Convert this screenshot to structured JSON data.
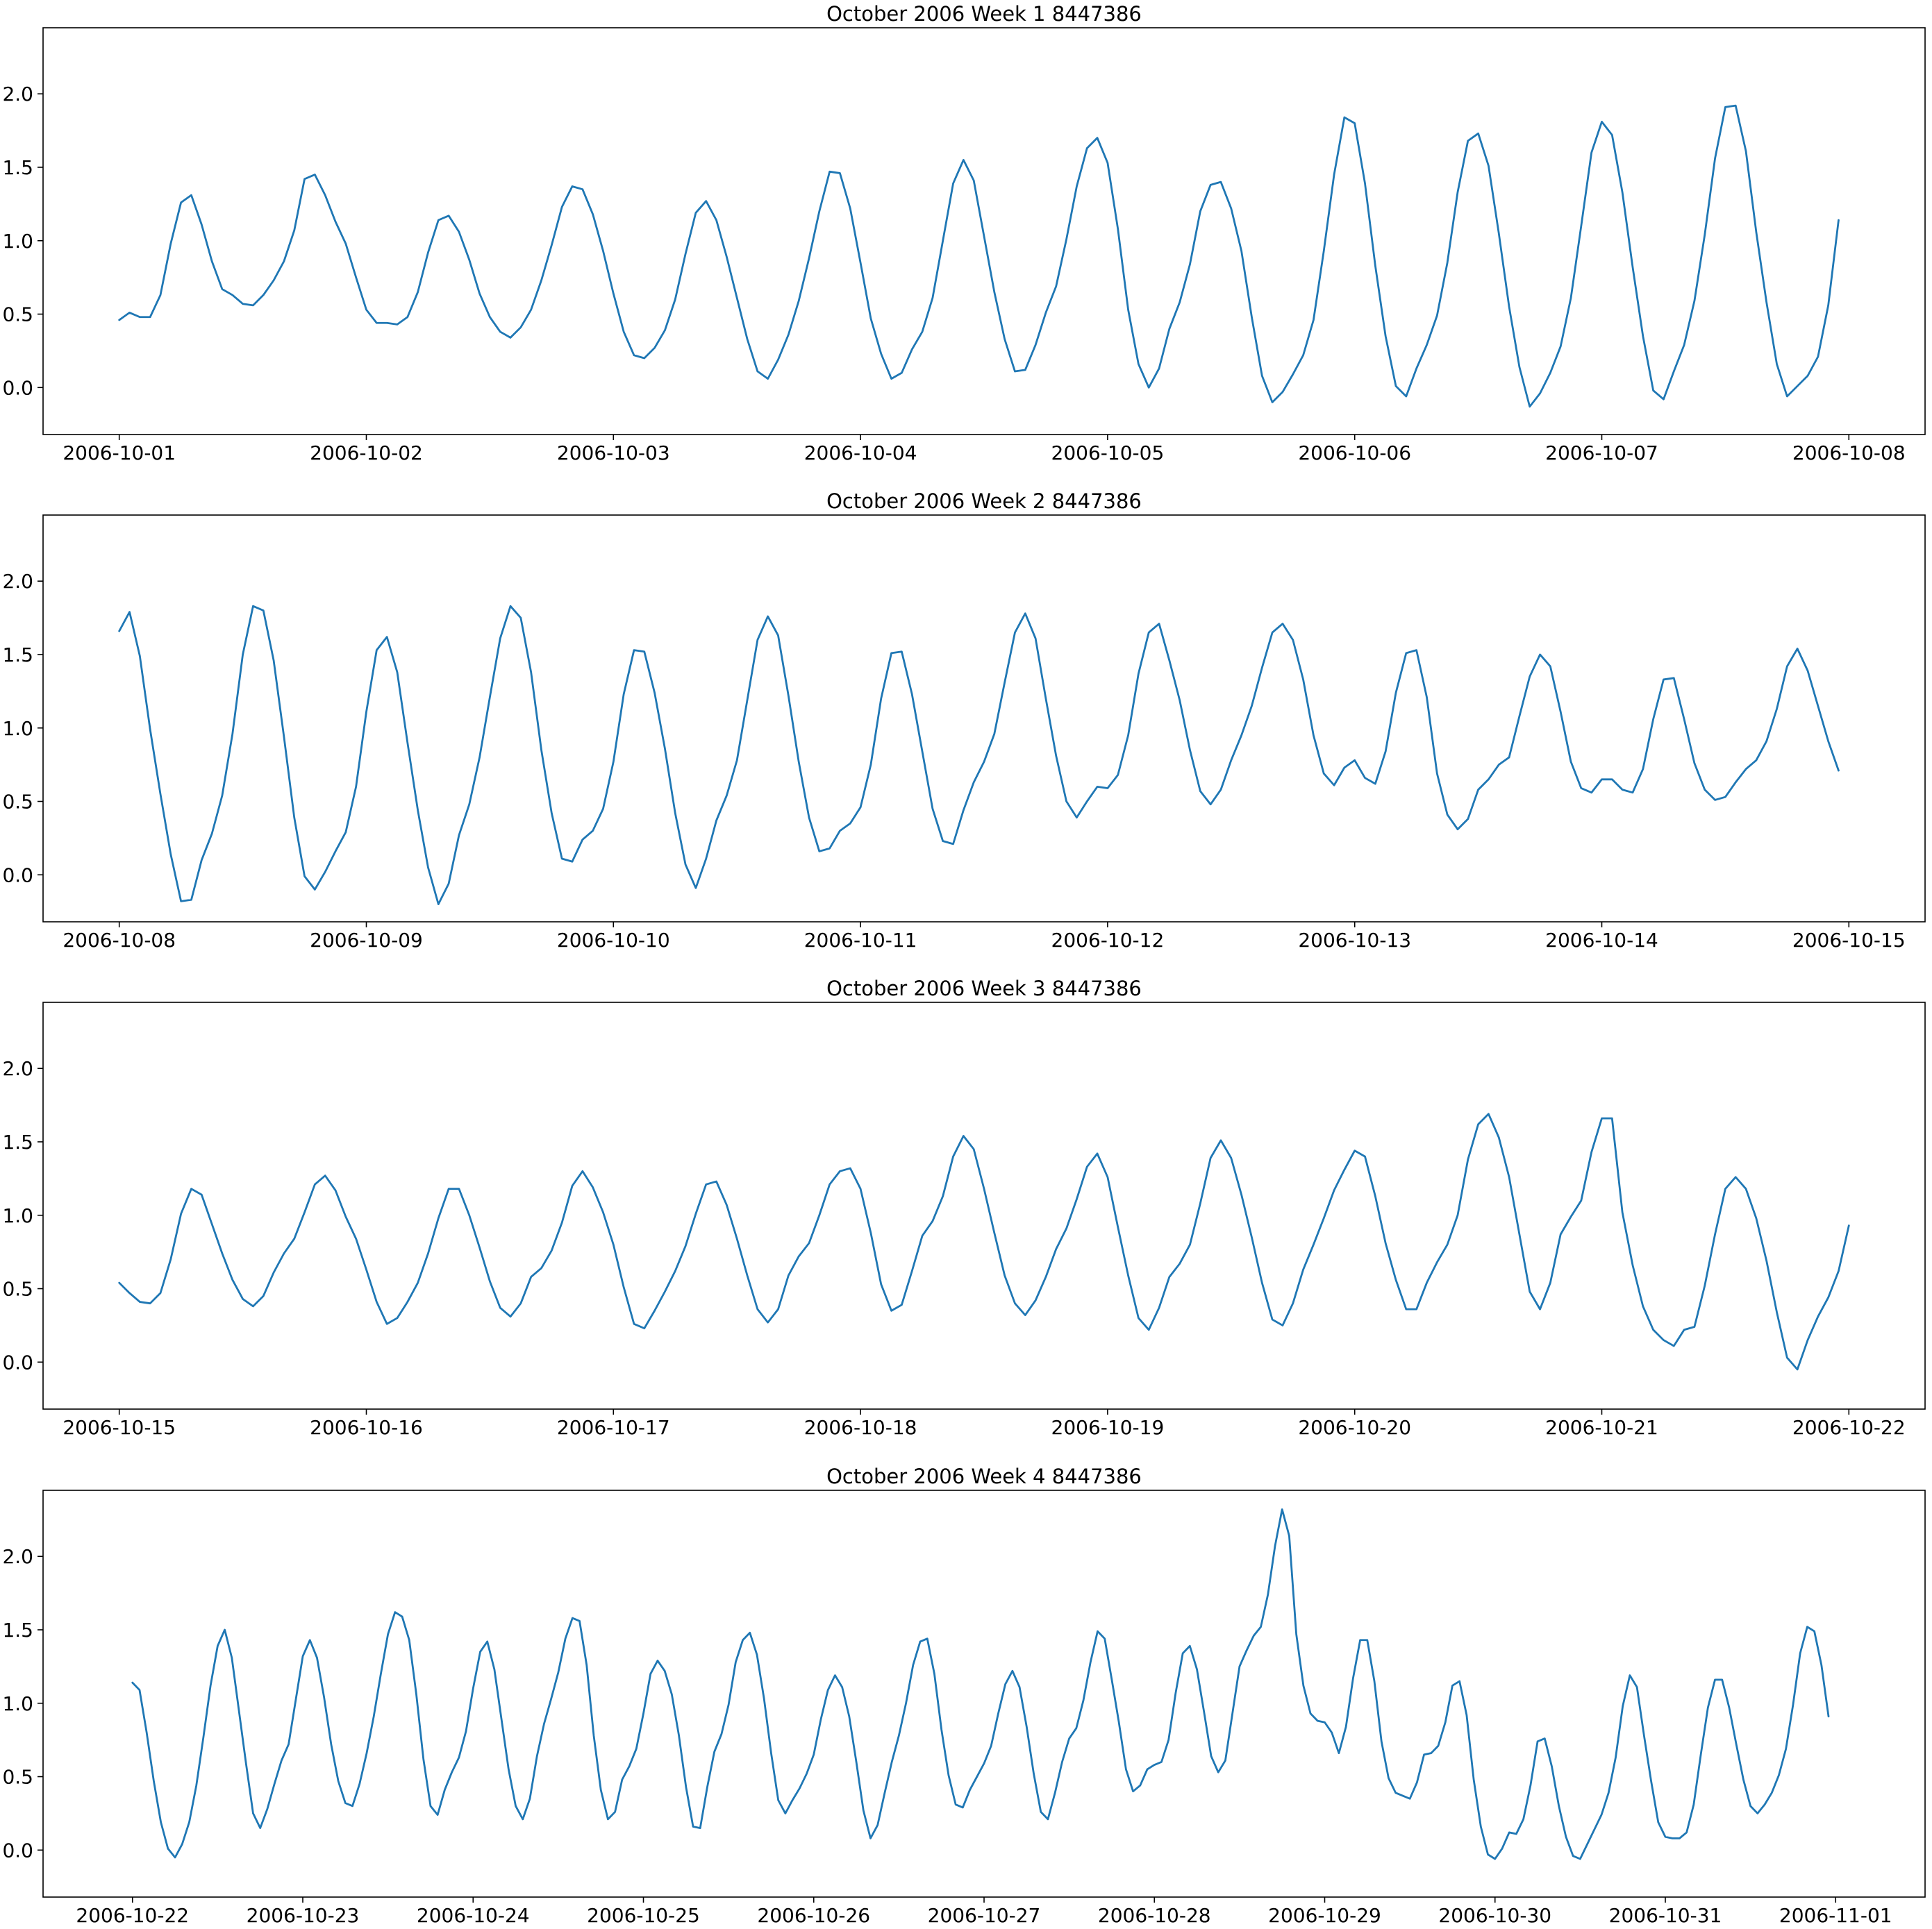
{
  "figure": {
    "line_color": "#1f77b4"
  },
  "chart_data": [
    {
      "type": "line",
      "title": "October 2006 Week 1 8447386",
      "xlabel": "",
      "ylabel": "",
      "x_start": "2006-10-01 00:00",
      "x_step_hours": 1,
      "x_ticks": [
        "2006-10-01",
        "2006-10-02",
        "2006-10-03",
        "2006-10-04",
        "2006-10-05",
        "2006-10-06",
        "2006-10-07",
        "2006-10-08"
      ],
      "xlim": [
        "2006-09-30 16:36",
        "2006-10-08 07:24"
      ],
      "ylim": [
        -0.32,
        2.45
      ],
      "y_ticks": [
        "0.0",
        "0.5",
        "1.0",
        "1.5",
        "2.0"
      ],
      "grid": false,
      "values": [
        0.46,
        0.51,
        0.48,
        0.48,
        0.63,
        0.98,
        1.26,
        1.31,
        1.11,
        0.86,
        0.67,
        0.63,
        0.57,
        0.56,
        0.63,
        0.73,
        0.86,
        1.07,
        1.42,
        1.45,
        1.31,
        1.13,
        0.98,
        0.75,
        0.53,
        0.44,
        0.44,
        0.43,
        0.48,
        0.65,
        0.92,
        1.14,
        1.17,
        1.06,
        0.87,
        0.64,
        0.48,
        0.38,
        0.34,
        0.41,
        0.53,
        0.73,
        0.97,
        1.23,
        1.37,
        1.35,
        1.18,
        0.93,
        0.64,
        0.38,
        0.22,
        0.2,
        0.27,
        0.39,
        0.6,
        0.91,
        1.19,
        1.27,
        1.14,
        0.89,
        0.61,
        0.33,
        0.11,
        0.06,
        0.19,
        0.36,
        0.59,
        0.88,
        1.2,
        1.47,
        1.46,
        1.22,
        0.85,
        0.47,
        0.23,
        0.06,
        0.1,
        0.26,
        0.38,
        0.61,
        1.0,
        1.39,
        1.55,
        1.41,
        1.03,
        0.65,
        0.33,
        0.11,
        0.12,
        0.29,
        0.51,
        0.69,
        1.01,
        1.37,
        1.63,
        1.7,
        1.53,
        1.08,
        0.53,
        0.16,
        0.0,
        0.13,
        0.4,
        0.58,
        0.84,
        1.2,
        1.38,
        1.4,
        1.22,
        0.93,
        0.48,
        0.08,
        -0.1,
        -0.03,
        0.09,
        0.22,
        0.46,
        0.93,
        1.45,
        1.84,
        1.8,
        1.39,
        0.83,
        0.35,
        0.01,
        -0.06,
        0.13,
        0.29,
        0.49,
        0.85,
        1.33,
        1.68,
        1.73,
        1.51,
        1.05,
        0.55,
        0.14,
        -0.13,
        -0.04,
        0.1,
        0.28,
        0.61,
        1.1,
        1.6,
        1.81,
        1.72,
        1.33,
        0.82,
        0.35,
        -0.02,
        -0.08,
        0.11,
        0.29,
        0.59,
        1.04,
        1.56,
        1.91,
        1.92,
        1.61,
        1.06,
        0.58,
        0.16,
        -0.06,
        0.01,
        0.08,
        0.21,
        0.56,
        1.14
      ]
    },
    {
      "type": "line",
      "title": "October 2006 Week 2 8447386",
      "xlabel": "",
      "ylabel": "",
      "x_start": "2006-10-08 00:00",
      "x_step_hours": 1,
      "x_ticks": [
        "2006-10-08",
        "2006-10-09",
        "2006-10-10",
        "2006-10-11",
        "2006-10-12",
        "2006-10-13",
        "2006-10-14",
        "2006-10-15"
      ],
      "xlim": [
        "2006-10-07 16:36",
        "2006-10-15 07:24"
      ],
      "ylim": [
        -0.32,
        2.45
      ],
      "y_ticks": [
        "0.0",
        "0.5",
        "1.0",
        "1.5",
        "2.0"
      ],
      "grid": false,
      "values": [
        1.66,
        1.79,
        1.49,
        0.99,
        0.55,
        0.14,
        -0.18,
        -0.17,
        0.1,
        0.28,
        0.54,
        0.96,
        1.5,
        1.83,
        1.8,
        1.46,
        0.94,
        0.39,
        -0.01,
        -0.1,
        0.02,
        0.16,
        0.29,
        0.6,
        1.11,
        1.53,
        1.62,
        1.38,
        0.9,
        0.44,
        0.05,
        -0.2,
        -0.06,
        0.27,
        0.48,
        0.8,
        1.21,
        1.61,
        1.83,
        1.75,
        1.38,
        0.85,
        0.42,
        0.11,
        0.09,
        0.24,
        0.3,
        0.45,
        0.77,
        1.23,
        1.53,
        1.52,
        1.24,
        0.86,
        0.42,
        0.07,
        -0.09,
        0.11,
        0.37,
        0.54,
        0.78,
        1.19,
        1.6,
        1.76,
        1.63,
        1.22,
        0.77,
        0.39,
        0.16,
        0.18,
        0.3,
        0.35,
        0.46,
        0.75,
        1.2,
        1.51,
        1.52,
        1.23,
        0.84,
        0.45,
        0.23,
        0.21,
        0.44,
        0.63,
        0.77,
        0.96,
        1.31,
        1.65,
        1.78,
        1.61,
        1.2,
        0.81,
        0.5,
        0.39,
        0.5,
        0.6,
        0.59,
        0.68,
        0.95,
        1.37,
        1.65,
        1.71,
        1.46,
        1.19,
        0.85,
        0.57,
        0.48,
        0.58,
        0.78,
        0.95,
        1.15,
        1.41,
        1.65,
        1.71,
        1.6,
        1.33,
        0.95,
        0.69,
        0.61,
        0.73,
        0.78,
        0.66,
        0.62,
        0.84,
        1.24,
        1.51,
        1.53,
        1.21,
        0.69,
        0.41,
        0.31,
        0.38,
        0.58,
        0.65,
        0.75,
        0.8,
        1.08,
        1.35,
        1.5,
        1.42,
        1.11,
        0.77,
        0.59,
        0.56,
        0.65,
        0.65,
        0.58,
        0.56,
        0.72,
        1.06,
        1.33,
        1.34,
        1.06,
        0.76,
        0.58,
        0.51,
        0.53,
        0.63,
        0.72,
        0.78,
        0.91,
        1.13,
        1.42,
        1.54,
        1.39,
        1.15,
        0.91,
        0.71
      ]
    },
    {
      "type": "line",
      "title": "October 2006 Week 3 8447386",
      "xlabel": "",
      "ylabel": "",
      "x_start": "2006-10-15 00:00",
      "x_step_hours": 1,
      "x_ticks": [
        "2006-10-15",
        "2006-10-16",
        "2006-10-17",
        "2006-10-18",
        "2006-10-19",
        "2006-10-20",
        "2006-10-21",
        "2006-10-22"
      ],
      "xlim": [
        "2006-10-14 16:36",
        "2006-10-22 07:24"
      ],
      "ylim": [
        -0.32,
        2.45
      ],
      "y_ticks": [
        "0.0",
        "0.5",
        "1.0",
        "1.5",
        "2.0"
      ],
      "grid": false,
      "values": [
        0.54,
        0.47,
        0.41,
        0.4,
        0.47,
        0.7,
        1.01,
        1.18,
        1.14,
        0.94,
        0.74,
        0.56,
        0.43,
        0.38,
        0.45,
        0.61,
        0.74,
        0.84,
        1.02,
        1.21,
        1.27,
        1.17,
        0.99,
        0.84,
        0.63,
        0.41,
        0.26,
        0.3,
        0.41,
        0.54,
        0.74,
        0.98,
        1.18,
        1.18,
        1.0,
        0.78,
        0.55,
        0.37,
        0.31,
        0.4,
        0.58,
        0.64,
        0.76,
        0.95,
        1.2,
        1.3,
        1.19,
        1.02,
        0.8,
        0.51,
        0.26,
        0.23,
        0.35,
        0.48,
        0.62,
        0.79,
        1.01,
        1.21,
        1.23,
        1.07,
        0.84,
        0.59,
        0.36,
        0.27,
        0.36,
        0.59,
        0.72,
        0.81,
        1.0,
        1.21,
        1.3,
        1.32,
        1.18,
        0.88,
        0.53,
        0.35,
        0.39,
        0.62,
        0.86,
        0.96,
        1.13,
        1.4,
        1.54,
        1.45,
        1.18,
        0.88,
        0.59,
        0.4,
        0.32,
        0.42,
        0.58,
        0.77,
        0.91,
        1.11,
        1.33,
        1.42,
        1.26,
        0.92,
        0.59,
        0.3,
        0.22,
        0.37,
        0.58,
        0.67,
        0.8,
        1.08,
        1.39,
        1.51,
        1.39,
        1.14,
        0.85,
        0.54,
        0.29,
        0.25,
        0.4,
        0.63,
        0.8,
        0.98,
        1.17,
        1.31,
        1.44,
        1.4,
        1.13,
        0.81,
        0.56,
        0.36,
        0.36,
        0.54,
        0.68,
        0.8,
        1.0,
        1.38,
        1.62,
        1.69,
        1.53,
        1.26,
        0.87,
        0.48,
        0.36,
        0.54,
        0.87,
        0.99,
        1.1,
        1.43,
        1.66,
        1.66,
        1.02,
        0.66,
        0.38,
        0.22,
        0.15,
        0.11,
        0.22,
        0.24,
        0.52,
        0.87,
        1.18,
        1.26,
        1.18,
        0.98,
        0.69,
        0.34,
        0.03,
        -0.05,
        0.15,
        0.31,
        0.44,
        0.62,
        0.93
      ]
    },
    {
      "type": "line",
      "title": "October 2006 Week 4 8447386",
      "xlabel": "",
      "ylabel": "",
      "x_start": "2006-10-22 00:00",
      "x_step_hours": 1,
      "x_ticks": [
        "2006-10-22",
        "2006-10-23",
        "2006-10-24",
        "2006-10-25",
        "2006-10-26",
        "2006-10-27",
        "2006-10-28",
        "2006-10-29",
        "2006-10-30",
        "2006-10-31",
        "2006-11-01"
      ],
      "xlim": [
        "2006-10-21 11:24",
        "2006-11-01 12:36"
      ],
      "ylim": [
        -0.32,
        2.45
      ],
      "y_ticks": [
        "0.0",
        "0.5",
        "1.0",
        "1.5",
        "2.0"
      ],
      "grid": false,
      "values": [
        1.14,
        1.09,
        0.8,
        0.47,
        0.19,
        0.01,
        -0.05,
        0.04,
        0.19,
        0.44,
        0.77,
        1.12,
        1.39,
        1.5,
        1.31,
        0.95,
        0.59,
        0.25,
        0.15,
        0.28,
        0.45,
        0.61,
        0.72,
        1.02,
        1.32,
        1.43,
        1.31,
        1.04,
        0.72,
        0.47,
        0.32,
        0.3,
        0.45,
        0.66,
        0.91,
        1.2,
        1.47,
        1.62,
        1.59,
        1.43,
        1.06,
        0.62,
        0.3,
        0.24,
        0.41,
        0.53,
        0.63,
        0.81,
        1.1,
        1.35,
        1.42,
        1.23,
        0.89,
        0.55,
        0.3,
        0.21,
        0.35,
        0.64,
        0.86,
        1.03,
        1.21,
        1.44,
        1.58,
        1.56,
        1.26,
        0.78,
        0.41,
        0.21,
        0.26,
        0.48,
        0.57,
        0.69,
        0.93,
        1.2,
        1.29,
        1.22,
        1.06,
        0.78,
        0.43,
        0.16,
        0.15,
        0.43,
        0.67,
        0.79,
        0.99,
        1.28,
        1.43,
        1.48,
        1.33,
        1.03,
        0.66,
        0.34,
        0.25,
        0.34,
        0.42,
        0.52,
        0.65,
        0.89,
        1.09,
        1.19,
        1.11,
        0.91,
        0.6,
        0.27,
        0.08,
        0.17,
        0.39,
        0.6,
        0.78,
        1.0,
        1.26,
        1.42,
        1.44,
        1.2,
        0.82,
        0.51,
        0.31,
        0.29,
        0.41,
        0.5,
        0.59,
        0.71,
        0.93,
        1.13,
        1.22,
        1.11,
        0.84,
        0.52,
        0.26,
        0.21,
        0.39,
        0.6,
        0.76,
        0.83,
        1.02,
        1.28,
        1.49,
        1.44,
        1.16,
        0.87,
        0.55,
        0.4,
        0.44,
        0.55,
        0.58,
        0.6,
        0.75,
        1.07,
        1.34,
        1.39,
        1.23,
        0.94,
        0.64,
        0.53,
        0.61,
        0.93,
        1.25,
        1.36,
        1.46,
        1.52,
        1.74,
        2.07,
        2.32,
        2.14,
        1.47,
        1.12,
        0.93,
        0.88,
        0.87,
        0.8,
        0.66,
        0.84,
        1.17,
        1.43,
        1.43,
        1.15,
        0.74,
        0.49,
        0.39,
        0.37,
        0.35,
        0.46,
        0.65,
        0.66,
        0.71,
        0.87,
        1.12,
        1.15,
        0.92,
        0.48,
        0.16,
        -0.03,
        -0.06,
        0.01,
        0.12,
        0.11,
        0.21,
        0.44,
        0.74,
        0.76,
        0.57,
        0.3,
        0.09,
        -0.04,
        -0.06,
        0.04,
        0.14,
        0.24,
        0.39,
        0.63,
        0.98,
        1.19,
        1.11,
        0.78,
        0.47,
        0.19,
        0.09,
        0.08,
        0.08,
        0.12,
        0.31,
        0.65,
        0.97,
        1.16,
        1.16,
        0.97,
        0.72,
        0.48,
        0.3,
        0.25,
        0.31,
        0.39,
        0.51,
        0.69,
        0.99,
        1.34,
        1.52,
        1.49,
        1.26,
        0.91
      ]
    }
  ]
}
